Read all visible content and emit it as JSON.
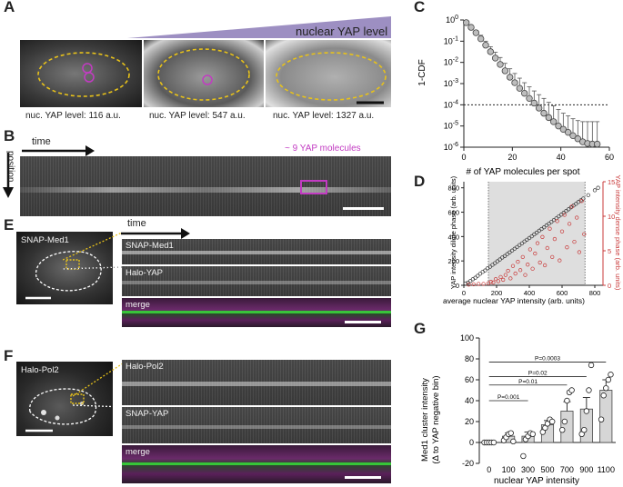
{
  "panels": {
    "A": {
      "label": "A",
      "header": "nuclear YAP level",
      "captions": [
        "nuc. YAP level: 116 a.u.",
        "nuc. YAP level: 547 a.u.",
        "nuc. YAP level: 1327 a.u."
      ]
    },
    "B": {
      "label": "B",
      "time_label": "time",
      "position_label": "position",
      "annotation": "~ 9 YAP molecules"
    },
    "C": {
      "label": "C",
      "ylabel": "1-CDF",
      "xlabel": "# of YAP molecules per spot"
    },
    "D": {
      "label": "D",
      "ylabel_left": "YAP intensity dilute phase (arb. units)",
      "ylabel_right": "YAP intensity dense phase (arb. units)",
      "xlabel": "average nuclear YAP intensity (arb. units)"
    },
    "E": {
      "label": "E",
      "cell_label": "SNAP-Med1",
      "time_label": "time",
      "strip_labels": [
        "SNAP-Med1",
        "Halo-YAP",
        "merge"
      ]
    },
    "F": {
      "label": "F",
      "cell_label": "Halo-Pol2",
      "strip_labels": [
        "Halo-Pol2",
        "SNAP-YAP",
        "merge"
      ]
    },
    "G": {
      "label": "G",
      "ylabel_line1": "Med1 cluster intensity",
      "ylabel_line2": "(Δ to YAP negative bin)",
      "xlabel": "nuclear YAP intensity"
    }
  },
  "colors": {
    "magenta": "#c23bc2",
    "green": "#37d43a",
    "yellow_outline": "#e8c21a",
    "purple_wedge": "#9d8fc2",
    "red_points": "#c93a3a",
    "gray_region": "#dedede"
  },
  "chart_data": [
    {
      "panel": "C",
      "type": "scatter",
      "xlabel": "# of YAP molecules per spot",
      "ylabel": "1-CDF",
      "yscale": "log",
      "xlim": [
        0,
        60
      ],
      "ylim": [
        1e-06,
        1
      ],
      "xticks": [
        "0",
        "20",
        "40",
        "60"
      ],
      "yticks": [
        "10^-6",
        "10^-5",
        "10^-4",
        "10^-3",
        "10^-2",
        "10^-1",
        "10^0"
      ],
      "reference_line_y": 0.0001,
      "x": [
        1,
        3,
        5,
        7,
        9,
        11,
        13,
        15,
        17,
        19,
        21,
        23,
        25,
        27,
        29,
        31,
        33,
        35,
        37,
        39,
        41,
        43,
        45,
        47,
        49,
        51,
        53,
        55
      ],
      "y": [
        0.75,
        0.45,
        0.25,
        0.13,
        0.065,
        0.032,
        0.016,
        0.008,
        0.004,
        0.002,
        0.0011,
        0.0006,
        0.00035,
        0.0002,
        0.00012,
        7e-05,
        4e-05,
        2.5e-05,
        1.6e-05,
        1e-05,
        7e-06,
        5e-06,
        3.5e-06,
        2.5e-06,
        1.8e-06,
        1.5e-06,
        1.4e-06,
        1.4e-06
      ],
      "error_upper": [
        0.85,
        0.55,
        0.32,
        0.19,
        0.1,
        0.055,
        0.03,
        0.017,
        0.009,
        0.005,
        0.003,
        0.0018,
        0.0011,
        0.0007,
        0.00045,
        0.0003,
        0.0002,
        0.00013,
        9e-05,
        6e-05,
        4e-05,
        3e-05,
        2.2e-05,
        1.8e-05,
        1.6e-05,
        1.6e-05,
        1.6e-05,
        1.6e-05
      ]
    },
    {
      "panel": "D",
      "type": "scatter",
      "xlabel": "average nuclear YAP intensity (arb. units)",
      "ylabel": "YAP intensity dilute phase (arb. units)",
      "ylabel_right": "YAP intensity dense phase (arb. units)",
      "xlim": [
        0,
        850
      ],
      "ylim_left": [
        0,
        850
      ],
      "ylim_right": [
        0,
        15
      ],
      "xticks": [
        "0",
        "200",
        "400",
        "600",
        "800"
      ],
      "yticks_left": [
        "0",
        "200",
        "400",
        "600",
        "800"
      ],
      "yticks_right": [
        "0",
        "5",
        "10",
        "15"
      ],
      "shaded_region_x": [
        150,
        740
      ],
      "series": [
        {
          "x": [
            10,
            25,
            40,
            55,
            70,
            85,
            100,
            115,
            130,
            145,
            160,
            175,
            190,
            205,
            220,
            235,
            250,
            265,
            280,
            295,
            310,
            325,
            340,
            355,
            370,
            385,
            400,
            415,
            430,
            445,
            460,
            475,
            490,
            505,
            520,
            535,
            550,
            565,
            580,
            595,
            610,
            625,
            640,
            655,
            670,
            685,
            700,
            715,
            730,
            760,
            800,
            820
          ],
          "y": [
            15,
            22,
            35,
            50,
            62,
            78,
            95,
            110,
            122,
            140,
            152,
            168,
            182,
            197,
            212,
            228,
            240,
            256,
            270,
            285,
            300,
            314,
            330,
            344,
            360,
            374,
            388,
            402,
            418,
            432,
            448,
            462,
            476,
            492,
            506,
            520,
            536,
            550,
            566,
            580,
            595,
            610,
            624,
            640,
            654,
            668,
            684,
            698,
            712,
            740,
            780,
            800
          ]
        },
        {
          "x": [
            30,
            60,
            90,
            120,
            150,
            165,
            180,
            195,
            210,
            225,
            240,
            255,
            270,
            285,
            300,
            315,
            330,
            345,
            360,
            375,
            390,
            405,
            420,
            435,
            450,
            465,
            480,
            495,
            510,
            525,
            540,
            555,
            570,
            585,
            600,
            615,
            630,
            645,
            660,
            675,
            690,
            705,
            720,
            735
          ],
          "y": [
            0.1,
            0.15,
            0.2,
            0.2,
            0.3,
            0.5,
            0.4,
            0.9,
            0.6,
            1.2,
            0.8,
            1.5,
            2.1,
            1.0,
            2.8,
            1.7,
            3.4,
            2.2,
            4.1,
            1.5,
            3.0,
            5.2,
            2.4,
            4.6,
            6.1,
            3.3,
            7.0,
            2.9,
            5.4,
            8.2,
            4.1,
            6.7,
            9.3,
            3.6,
            7.8,
            10.2,
            5.5,
            8.9,
            11.4,
            6.3,
            9.8,
            4.8,
            12.2,
            7.4
          ]
        }
      ]
    },
    {
      "panel": "G",
      "type": "bar",
      "xlabel": "nuclear YAP intensity",
      "ylabel": "Med1 cluster intensity (Δ to YAP negative bin)",
      "ylim": [
        -20,
        100
      ],
      "yticks": [
        "-20",
        "0",
        "20",
        "40",
        "60",
        "80",
        "100"
      ],
      "categories": [
        "0",
        "100",
        "300",
        "500",
        "700",
        "900",
        "1100"
      ],
      "values": [
        0,
        6,
        6,
        17,
        30,
        32,
        50
      ],
      "errors": [
        1,
        3,
        4,
        4,
        9,
        11,
        10
      ],
      "points": [
        [
          0,
          0,
          0,
          0,
          0
        ],
        [
          2,
          5,
          8,
          9,
          1
        ],
        [
          -13,
          3,
          6,
          9,
          8
        ],
        [
          10,
          14,
          18,
          22,
          20
        ],
        [
          12,
          20,
          40,
          48,
          50
        ],
        [
          8,
          12,
          30,
          50,
          74
        ],
        [
          22,
          45,
          52,
          60,
          65
        ]
      ],
      "comparisons": [
        {
          "from": "0",
          "to": "300",
          "label": "P=0.001"
        },
        {
          "from": "0",
          "to": "700",
          "label": "P=0.01"
        },
        {
          "from": "0",
          "to": "900",
          "label": "P=0.02"
        },
        {
          "from": "0",
          "to": "1100",
          "label": "P=0.0003"
        }
      ]
    }
  ]
}
